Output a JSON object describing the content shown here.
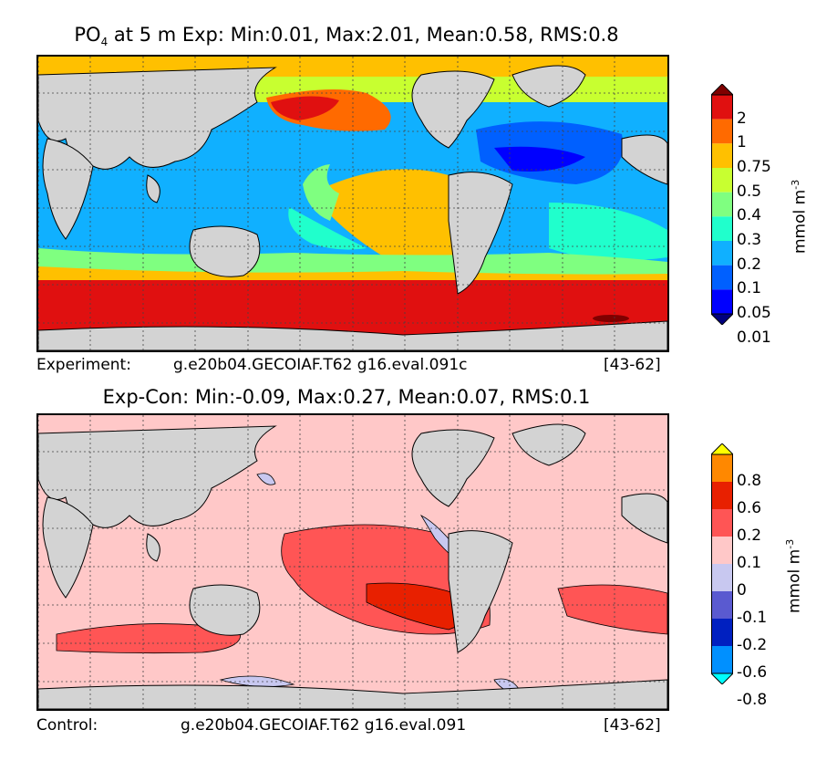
{
  "top_panel": {
    "title_var": "PO",
    "title_sub": "4",
    "title_rest": " at 5 m Exp: Min:0.01, Max:2.01, Mean:0.58, RMS:0.8",
    "caption_label": "Experiment:",
    "caption_case": "g.e20b04.GECOIAF.T62 g16.eval.091c",
    "caption_years": "[43-62]",
    "colorbar": {
      "ticks": [
        "2",
        "1",
        "0.75",
        "0.5",
        "0.4",
        "0.3",
        "0.2",
        "0.1",
        "0.05",
        "0.01"
      ],
      "colors": [
        "#7f0000",
        "#e01010",
        "#ff6a00",
        "#ffc000",
        "#c8ff30",
        "#7fff80",
        "#20ffcc",
        "#10b0ff",
        "#0060ff",
        "#0000ff",
        "#00007f"
      ],
      "units": "mmol m",
      "units_exp": "-3"
    }
  },
  "bottom_panel": {
    "title": "Exp-Con: Min:-0.09, Max:0.27, Mean:0.07, RMS:0.1",
    "caption_label": "Control:",
    "caption_case": "g.e20b04.GECOIAF.T62 g16.eval.091",
    "caption_years": "[43-62]",
    "colorbar": {
      "ticks": [
        "0.8",
        "0.6",
        "0.2",
        "0.1",
        "0",
        "-0.1",
        "-0.2",
        "-0.6",
        "-0.8"
      ],
      "colors": [
        "#ffff00",
        "#ff8800",
        "#e82000",
        "#ff5555",
        "#ffc8c8",
        "#c8c8f0",
        "#5a5ad0",
        "#0020c0",
        "#0090ff",
        "#00ffff"
      ],
      "units": "mmol m",
      "units_exp": "-3"
    }
  },
  "palette": {
    "land": "#d3d3d3",
    "diff_background": "#ffc8c8",
    "diff_positive": "#ff5555",
    "diff_strong": "#e82000",
    "diff_negative": "#c8c8f0"
  }
}
